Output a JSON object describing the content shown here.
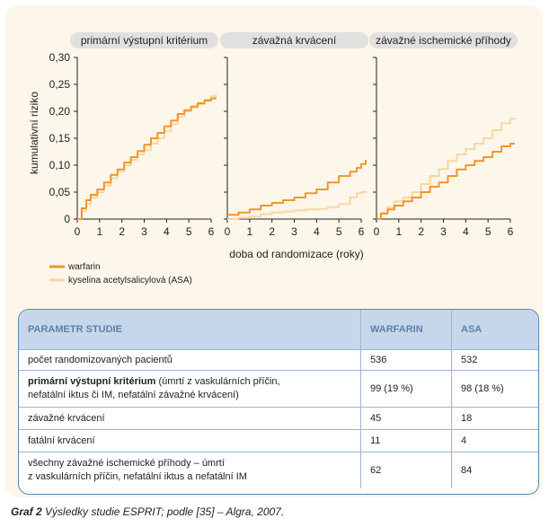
{
  "chart_data": {
    "type": "line",
    "y_tick_labels": [
      "0",
      "0,05",
      "0,10",
      "0,15",
      "0,20",
      "0,25",
      "0,30"
    ],
    "x_tick_labels": [
      "0",
      "1",
      "2",
      "3",
      "4",
      "5",
      "6"
    ],
    "ylabel": "kumulativní riziko",
    "xlabel": "doba od randomizace (roky)",
    "ylim": [
      0,
      0.3
    ],
    "xlim": [
      0,
      6
    ],
    "colors": {
      "warfarin": "#f0962a",
      "asa": "#f9d6a3"
    },
    "legend": [
      "warfarin",
      "kyselina acetylsalicylová (ASA)"
    ],
    "panels": [
      {
        "title": "primární výstupní kritérium",
        "series": [
          {
            "name": "warfarin",
            "x": [
              0,
              0.2,
              0.4,
              0.6,
              0.9,
              1.2,
              1.5,
              1.8,
              2.1,
              2.4,
              2.7,
              3.0,
              3.3,
              3.6,
              3.9,
              4.2,
              4.5,
              4.8,
              5.1,
              5.4,
              5.7,
              6.0,
              6.2
            ],
            "y": [
              0,
              0.02,
              0.035,
              0.045,
              0.055,
              0.068,
              0.082,
              0.092,
              0.105,
              0.115,
              0.126,
              0.138,
              0.15,
              0.16,
              0.172,
              0.183,
              0.195,
              0.202,
              0.209,
              0.215,
              0.22,
              0.224,
              0.226
            ]
          },
          {
            "name": "kyselina acetylsalicylová (ASA)",
            "x": [
              0,
              0.2,
              0.4,
              0.6,
              0.9,
              1.2,
              1.5,
              1.8,
              2.1,
              2.4,
              2.7,
              3.0,
              3.3,
              3.6,
              3.9,
              4.2,
              4.5,
              4.8,
              5.1,
              5.4,
              5.7,
              6.0,
              6.2
            ],
            "y": [
              0,
              0.015,
              0.028,
              0.04,
              0.05,
              0.062,
              0.076,
              0.088,
              0.1,
              0.11,
              0.12,
              0.128,
              0.14,
              0.15,
              0.163,
              0.176,
              0.19,
              0.2,
              0.207,
              0.213,
              0.222,
              0.228,
              0.232
            ]
          }
        ]
      },
      {
        "title": "závažná krvácení",
        "series": [
          {
            "name": "warfarin",
            "x": [
              0,
              0.5,
              1.0,
              1.5,
              2.0,
              2.5,
              3.0,
              3.5,
              4.0,
              4.5,
              5.0,
              5.5,
              5.8,
              6.0,
              6.2
            ],
            "y": [
              0.008,
              0.012,
              0.018,
              0.025,
              0.03,
              0.035,
              0.04,
              0.048,
              0.055,
              0.068,
              0.08,
              0.088,
              0.095,
              0.102,
              0.11
            ]
          },
          {
            "name": "kyselina acetylsalicylová (ASA)",
            "x": [
              0,
              0.5,
              1.0,
              1.5,
              2.0,
              2.5,
              3.0,
              3.5,
              4.0,
              4.5,
              5.0,
              5.5,
              5.8,
              6.0,
              6.2
            ],
            "y": [
              0,
              0.002,
              0.005,
              0.009,
              0.012,
              0.014,
              0.016,
              0.018,
              0.019,
              0.022,
              0.028,
              0.04,
              0.048,
              0.05,
              0.052
            ]
          }
        ]
      },
      {
        "title": "závažné ischemické příhody",
        "series": [
          {
            "name": "warfarin",
            "x": [
              0,
              0.2,
              0.5,
              0.8,
              1.2,
              1.6,
              2.0,
              2.4,
              2.8,
              3.2,
              3.6,
              4.0,
              4.4,
              4.8,
              5.2,
              5.6,
              6.0,
              6.2
            ],
            "y": [
              0,
              0.01,
              0.018,
              0.025,
              0.033,
              0.04,
              0.05,
              0.06,
              0.068,
              0.08,
              0.092,
              0.1,
              0.108,
              0.115,
              0.125,
              0.135,
              0.14,
              0.14
            ]
          },
          {
            "name": "kyselina acetylsalicylová (ASA)",
            "x": [
              0,
              0.2,
              0.5,
              0.8,
              1.2,
              1.6,
              2.0,
              2.4,
              2.8,
              3.2,
              3.6,
              4.0,
              4.4,
              4.8,
              5.2,
              5.6,
              6.0,
              6.2
            ],
            "y": [
              0,
              0.012,
              0.022,
              0.033,
              0.04,
              0.05,
              0.065,
              0.08,
              0.093,
              0.108,
              0.12,
              0.13,
              0.14,
              0.15,
              0.165,
              0.178,
              0.186,
              0.188
            ]
          }
        ]
      }
    ]
  },
  "table": {
    "headers": [
      "PARAMETR STUDIE",
      "WARFARIN",
      "ASA"
    ],
    "rows": [
      {
        "label": "počet randomizovaných pacientů",
        "warfarin": "536",
        "asa": "532"
      },
      {
        "label_bold": "primární výstupní kritérium",
        "label_rest": " (úmrtí z vaskulárních příčin,",
        "label_line2": "nefatální iktus či IM, nefatální závažné krvácení)",
        "warfarin": "99 (19 %)",
        "asa": "98 (18 %)"
      },
      {
        "label": "závažné krvácení",
        "warfarin": "45",
        "asa": "18"
      },
      {
        "label": "fatální krvácení",
        "warfarin": "11",
        "asa": "4"
      },
      {
        "label": "všechny závažné ischemické příhody – úmrtí",
        "label_line2": "z vaskulárních příčin, nefatální iktus a nefatální IM",
        "warfarin": "62",
        "asa": "84"
      }
    ]
  },
  "caption": {
    "label": "Graf 2",
    "text": "Výsledky studie ESPRIT; podle [35] – Algra, 2007."
  }
}
